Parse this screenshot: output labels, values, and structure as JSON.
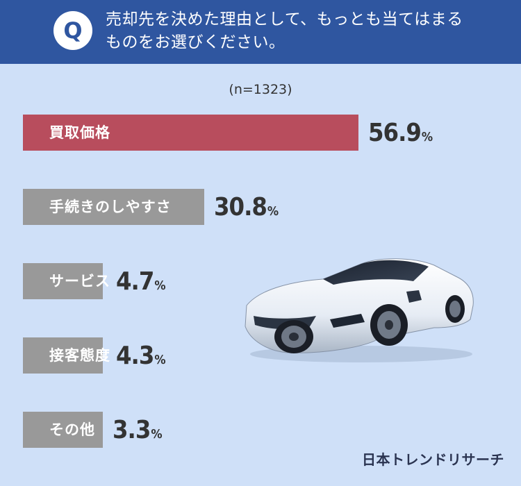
{
  "header": {
    "badge": "Q",
    "question_line1": "売却先を決めた理由として、もっとも当てはまる",
    "question_line2": "ものをお選びください。"
  },
  "sample_size": "(n=1323)",
  "chart_data": {
    "type": "bar",
    "orientation": "horizontal",
    "categories": [
      "買取価格",
      "手続きのしやすさ",
      "サービス",
      "接客態度",
      "その他"
    ],
    "values": [
      56.9,
      30.8,
      4.7,
      4.3,
      3.3
    ],
    "unit": "%",
    "colors": [
      "#b84d5d",
      "#999999",
      "#999999",
      "#999999",
      "#999999"
    ]
  },
  "brand": "日本トレンドリサーチ",
  "car_icon": "sports-car-illustration"
}
